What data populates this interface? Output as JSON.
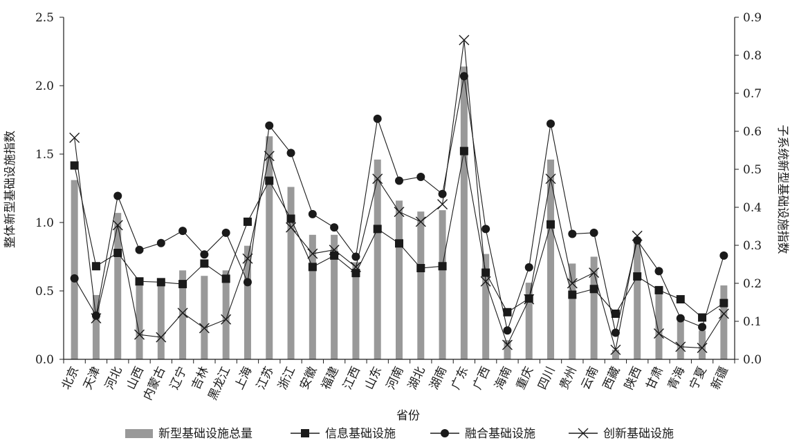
{
  "chart_data": {
    "type": "bar",
    "categories": [
      "北京",
      "天津",
      "河北",
      "山西",
      "内蒙古",
      "辽宁",
      "吉林",
      "黑龙江",
      "上海",
      "江苏",
      "浙江",
      "安徽",
      "福建",
      "江西",
      "山东",
      "河南",
      "湖北",
      "湖南",
      "广东",
      "广西",
      "海南",
      "重庆",
      "四川",
      "贵州",
      "云南",
      "西藏",
      "陕西",
      "甘肃",
      "青海",
      "宁夏",
      "新疆"
    ],
    "xlabel": "省份",
    "ylabel_left": "整体新型基础设施指数",
    "ylabel_right": "子系统新型基础设施指数",
    "ylim_left": [
      0,
      2.5
    ],
    "ylim_right": [
      0,
      0.9
    ],
    "yticks_left": [
      "0.0",
      "0.5",
      "1.0",
      "1.5",
      "2.0",
      "2.5"
    ],
    "yticks_right": [
      "0.0",
      "0.1",
      "0.2",
      "0.3",
      "0.4",
      "0.5",
      "0.6",
      "0.7",
      "0.8",
      "0.9"
    ],
    "bar_series": {
      "name": "新型基础设施总量",
      "axis": "left",
      "color": "#999999",
      "values": [
        1.31,
        0.47,
        1.07,
        0.54,
        0.55,
        0.65,
        0.61,
        0.65,
        0.83,
        1.63,
        1.26,
        0.91,
        0.91,
        0.71,
        1.46,
        1.16,
        1.08,
        1.09,
        2.14,
        0.77,
        0.14,
        0.56,
        1.46,
        0.7,
        0.75,
        0.07,
        0.86,
        0.5,
        0.29,
        0.21,
        0.54
      ]
    },
    "series": [
      {
        "name": "信息基础设施",
        "axis": "right",
        "marker": "square",
        "values": [
          0.51,
          0.245,
          0.28,
          0.205,
          0.203,
          0.198,
          0.252,
          0.212,
          0.362,
          0.47,
          0.37,
          0.243,
          0.273,
          0.227,
          0.343,
          0.305,
          0.24,
          0.245,
          0.548,
          0.228,
          0.124,
          0.16,
          0.355,
          0.17,
          0.185,
          0.12,
          0.218,
          0.182,
          0.158,
          0.11,
          0.148
        ]
      },
      {
        "name": "融合基础设施",
        "axis": "right",
        "marker": "circle",
        "values": [
          0.213,
          0.115,
          0.43,
          0.288,
          0.306,
          0.338,
          0.276,
          0.333,
          0.203,
          0.615,
          0.543,
          0.382,
          0.347,
          0.27,
          0.633,
          0.47,
          0.48,
          0.435,
          0.745,
          0.343,
          0.076,
          0.242,
          0.62,
          0.33,
          0.333,
          0.07,
          0.313,
          0.232,
          0.108,
          0.085,
          0.273
        ]
      },
      {
        "name": "创新基础设施",
        "axis": "right",
        "marker": "cross",
        "values": [
          0.583,
          0.108,
          0.353,
          0.065,
          0.058,
          0.122,
          0.082,
          0.105,
          0.265,
          0.535,
          0.347,
          0.278,
          0.288,
          0.243,
          0.475,
          0.388,
          0.362,
          0.408,
          0.84,
          0.205,
          0.038,
          0.158,
          0.475,
          0.2,
          0.228,
          0.025,
          0.325,
          0.068,
          0.033,
          0.03,
          0.12
        ]
      }
    ],
    "legend_position": "bottom",
    "grid": false
  }
}
